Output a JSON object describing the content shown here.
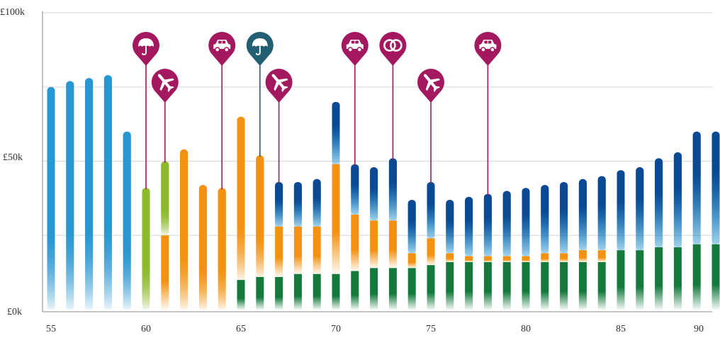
{
  "chart_data": {
    "type": "bar",
    "title": "",
    "xlabel": "",
    "ylabel": "",
    "x_ticks": [
      "55",
      "60",
      "65",
      "70",
      "75",
      "80",
      "85",
      "90"
    ],
    "y_ticks": [
      "£0k",
      "£50k",
      "£100k"
    ],
    "xlim": [
      55,
      90
    ],
    "ylim": [
      0,
      100
    ],
    "grid": "horizontal",
    "bars": [
      {
        "age": 55,
        "segments": [
          {
            "source": "salary",
            "value": 75
          }
        ]
      },
      {
        "age": 56,
        "segments": [
          {
            "source": "salary",
            "value": 77
          }
        ]
      },
      {
        "age": 57,
        "segments": [
          {
            "source": "salary",
            "value": 78
          }
        ]
      },
      {
        "age": 58,
        "segments": [
          {
            "source": "salary",
            "value": 79
          }
        ]
      },
      {
        "age": 59,
        "segments": [
          {
            "source": "salary",
            "value": 60
          }
        ]
      },
      {
        "age": 60,
        "segments": [
          {
            "source": "green",
            "value": 41
          }
        ]
      },
      {
        "age": 61,
        "segments": [
          {
            "source": "orange",
            "value": 25
          },
          {
            "source": "green",
            "value": 25
          }
        ]
      },
      {
        "age": 62,
        "segments": [
          {
            "source": "orange",
            "value": 54
          }
        ]
      },
      {
        "age": 63,
        "segments": [
          {
            "source": "orange",
            "value": 42
          }
        ]
      },
      {
        "age": 64,
        "segments": [
          {
            "source": "orange",
            "value": 41
          }
        ]
      },
      {
        "age": 65,
        "segments": [
          {
            "source": "darkgreen",
            "value": 10
          },
          {
            "source": "orange",
            "value": 55
          }
        ]
      },
      {
        "age": 66,
        "segments": [
          {
            "source": "darkgreen",
            "value": 11
          },
          {
            "source": "orange",
            "value": 41
          }
        ]
      },
      {
        "age": 67,
        "segments": [
          {
            "source": "darkgreen",
            "value": 11
          },
          {
            "source": "orange",
            "value": 17
          },
          {
            "source": "navy",
            "value": 15
          }
        ]
      },
      {
        "age": 68,
        "segments": [
          {
            "source": "darkgreen",
            "value": 12
          },
          {
            "source": "orange",
            "value": 16
          },
          {
            "source": "navy",
            "value": 15
          }
        ]
      },
      {
        "age": 69,
        "segments": [
          {
            "source": "darkgreen",
            "value": 12
          },
          {
            "source": "orange",
            "value": 16
          },
          {
            "source": "navy",
            "value": 16
          }
        ]
      },
      {
        "age": 70,
        "segments": [
          {
            "source": "darkgreen",
            "value": 12
          },
          {
            "source": "orange",
            "value": 37
          },
          {
            "source": "navy",
            "value": 21
          }
        ]
      },
      {
        "age": 71,
        "segments": [
          {
            "source": "darkgreen",
            "value": 13
          },
          {
            "source": "orange",
            "value": 19
          },
          {
            "source": "navy",
            "value": 17
          }
        ]
      },
      {
        "age": 72,
        "segments": [
          {
            "source": "darkgreen",
            "value": 14
          },
          {
            "source": "orange",
            "value": 16
          },
          {
            "source": "navy",
            "value": 18
          }
        ]
      },
      {
        "age": 73,
        "segments": [
          {
            "source": "darkgreen",
            "value": 14
          },
          {
            "source": "orange",
            "value": 16
          },
          {
            "source": "navy",
            "value": 21
          }
        ]
      },
      {
        "age": 74,
        "segments": [
          {
            "source": "darkgreen",
            "value": 14
          },
          {
            "source": "orange",
            "value": 5
          },
          {
            "source": "navy",
            "value": 18
          }
        ]
      },
      {
        "age": 75,
        "segments": [
          {
            "source": "darkgreen",
            "value": 15
          },
          {
            "source": "orange",
            "value": 9
          },
          {
            "source": "navy",
            "value": 19
          }
        ]
      },
      {
        "age": 76,
        "segments": [
          {
            "source": "darkgreen",
            "value": 16
          },
          {
            "source": "orange",
            "value": 3
          },
          {
            "source": "navy",
            "value": 18
          }
        ]
      },
      {
        "age": 77,
        "segments": [
          {
            "source": "darkgreen",
            "value": 16
          },
          {
            "source": "orange",
            "value": 2
          },
          {
            "source": "navy",
            "value": 20
          }
        ]
      },
      {
        "age": 78,
        "segments": [
          {
            "source": "darkgreen",
            "value": 16
          },
          {
            "source": "orange",
            "value": 2
          },
          {
            "source": "navy",
            "value": 21
          }
        ]
      },
      {
        "age": 79,
        "segments": [
          {
            "source": "darkgreen",
            "value": 16
          },
          {
            "source": "orange",
            "value": 2
          },
          {
            "source": "navy",
            "value": 22
          }
        ]
      },
      {
        "age": 80,
        "segments": [
          {
            "source": "darkgreen",
            "value": 16
          },
          {
            "source": "orange",
            "value": 2
          },
          {
            "source": "navy",
            "value": 23
          }
        ]
      },
      {
        "age": 81,
        "segments": [
          {
            "source": "darkgreen",
            "value": 16
          },
          {
            "source": "orange",
            "value": 3
          },
          {
            "source": "navy",
            "value": 23
          }
        ]
      },
      {
        "age": 82,
        "segments": [
          {
            "source": "darkgreen",
            "value": 16
          },
          {
            "source": "orange",
            "value": 3
          },
          {
            "source": "navy",
            "value": 24
          }
        ]
      },
      {
        "age": 83,
        "segments": [
          {
            "source": "darkgreen",
            "value": 16
          },
          {
            "source": "orange",
            "value": 4
          },
          {
            "source": "navy",
            "value": 24
          }
        ]
      },
      {
        "age": 84,
        "segments": [
          {
            "source": "darkgreen",
            "value": 16
          },
          {
            "source": "orange",
            "value": 4
          },
          {
            "source": "navy",
            "value": 25
          }
        ]
      },
      {
        "age": 85,
        "segments": [
          {
            "source": "darkgreen",
            "value": 20
          },
          {
            "source": "navy",
            "value": 27
          }
        ]
      },
      {
        "age": 86,
        "segments": [
          {
            "source": "darkgreen",
            "value": 20
          },
          {
            "source": "navy",
            "value": 28
          }
        ]
      },
      {
        "age": 87,
        "segments": [
          {
            "source": "darkgreen",
            "value": 21
          },
          {
            "source": "navy",
            "value": 30
          }
        ]
      },
      {
        "age": 88,
        "segments": [
          {
            "source": "darkgreen",
            "value": 21
          },
          {
            "source": "navy",
            "value": 32
          }
        ]
      },
      {
        "age": 89,
        "segments": [
          {
            "source": "darkgreen",
            "value": 22
          },
          {
            "source": "navy",
            "value": 38
          }
        ]
      },
      {
        "age": 90,
        "segments": [
          {
            "source": "darkgreen",
            "value": 22
          },
          {
            "source": "navy",
            "value": 38
          }
        ]
      }
    ],
    "markers": [
      {
        "age": 60,
        "icon": "umbrella-icon",
        "color": "#a3185f",
        "tier": "high",
        "stem_end": 41
      },
      {
        "age": 61,
        "icon": "plane-icon",
        "color": "#a3185f",
        "tier": "low",
        "stem_end": 50
      },
      {
        "age": 64,
        "icon": "car-icon",
        "color": "#a3185f",
        "tier": "high",
        "stem_end": 41
      },
      {
        "age": 66,
        "icon": "umbrella-icon",
        "color": "#235f73",
        "tier": "high",
        "stem_end": 52
      },
      {
        "age": 67,
        "icon": "plane-icon",
        "color": "#a3185f",
        "tier": "low",
        "stem_end": 43
      },
      {
        "age": 71,
        "icon": "car-icon",
        "color": "#a3185f",
        "tier": "high",
        "stem_end": 49
      },
      {
        "age": 73,
        "icon": "rings-icon",
        "color": "#a3185f",
        "tier": "high",
        "stem_end": 51
      },
      {
        "age": 75,
        "icon": "plane-icon",
        "color": "#a3185f",
        "tier": "low",
        "stem_end": 43
      },
      {
        "age": 78,
        "icon": "car-icon",
        "color": "#a3185f",
        "tier": "high",
        "stem_end": 39
      }
    ],
    "colors": {
      "salary": "#2896d2",
      "green": "#8cba2c",
      "orange": "#f39110",
      "darkgreen": "#137a3c",
      "navy": "#0a4a94",
      "grid": "#d9d9d9",
      "axis": "#888888"
    }
  }
}
